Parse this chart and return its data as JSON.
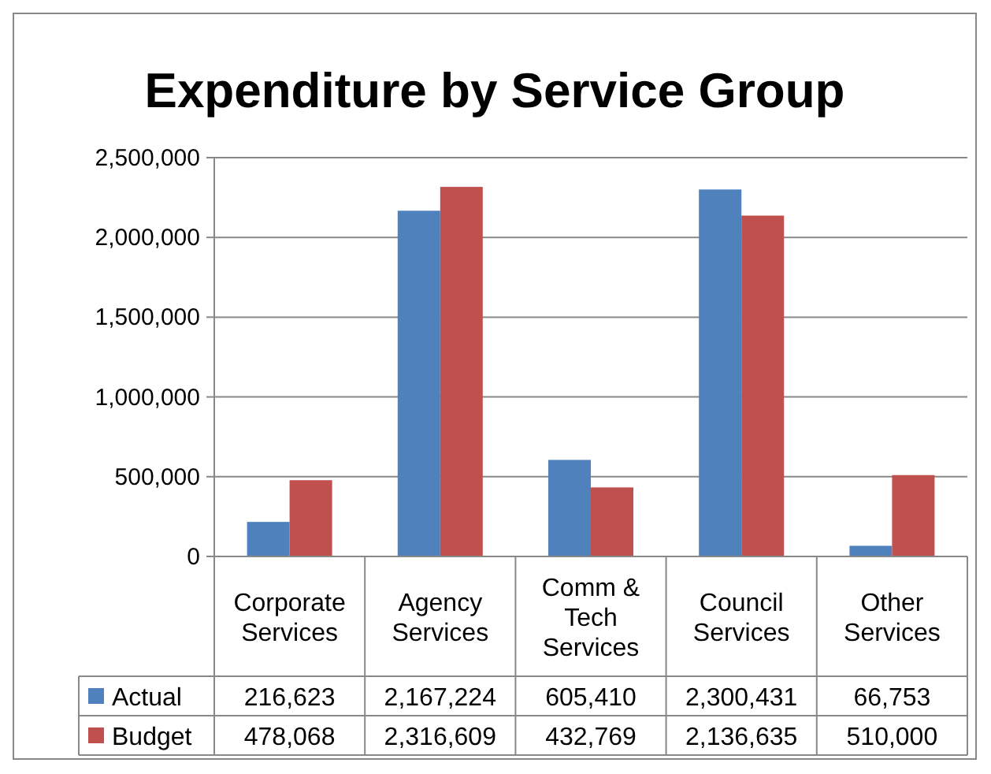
{
  "chart_data": {
    "type": "bar",
    "title": "Expenditure by Service Group",
    "categories": [
      "Corporate Services",
      "Agency Services",
      "Comm & Tech Services",
      "Council Services",
      "Other Services"
    ],
    "series": [
      {
        "name": "Actual",
        "color": "#4f81bd",
        "values": [
          216623,
          2167224,
          605410,
          2300431,
          66753
        ],
        "value_labels": [
          "216,623",
          "2,167,224",
          "605,410",
          "2,300,431",
          "66,753"
        ]
      },
      {
        "name": "Budget",
        "color": "#c0504d",
        "values": [
          478068,
          2316609,
          432769,
          2136635,
          510000
        ],
        "value_labels": [
          "478,068",
          "2,316,609",
          "432,769",
          "2,136,635",
          "510,000"
        ]
      }
    ],
    "ylim": [
      0,
      2500000
    ],
    "yticks": [
      0,
      {
        "value": 500000,
        "label": "500,000"
      },
      {
        "value": 1000000,
        "label": "1,000,000"
      },
      {
        "value": 1500000,
        "label": "1,500,000"
      },
      {
        "value": 2000000,
        "label": "2,000,000"
      },
      {
        "value": 2500000,
        "label": "2,500,000"
      }
    ],
    "grid": "y",
    "legend": "bottom"
  }
}
